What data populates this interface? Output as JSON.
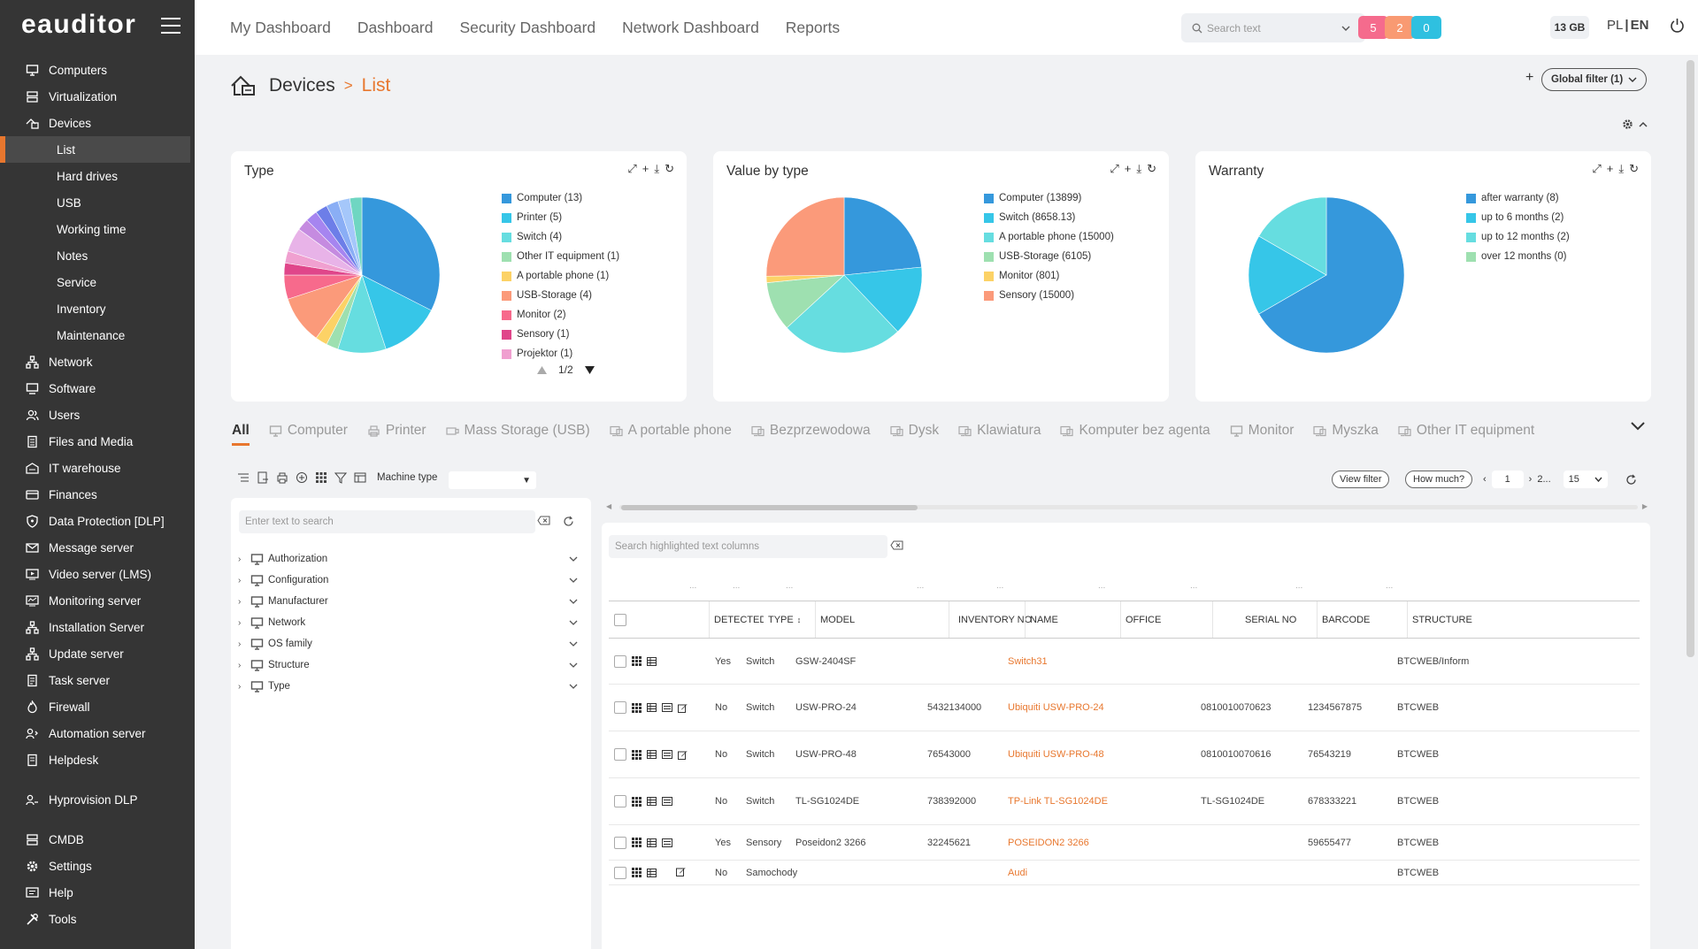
{
  "app": {
    "logo": "eauditor"
  },
  "sidebar": {
    "items": [
      {
        "label": "Computers",
        "icon": "monitor-icon",
        "level": "top"
      },
      {
        "label": "Virtualization",
        "icon": "server-icon",
        "level": "top"
      },
      {
        "label": "Devices",
        "icon": "devices-icon",
        "level": "top"
      },
      {
        "label": "List",
        "level": "sub",
        "active": true
      },
      {
        "label": "Hard drives",
        "level": "sub"
      },
      {
        "label": "USB",
        "level": "sub"
      },
      {
        "label": "Working time",
        "level": "sub"
      },
      {
        "label": "Notes",
        "level": "sub"
      },
      {
        "label": "Service",
        "level": "sub"
      },
      {
        "label": "Inventory",
        "level": "sub"
      },
      {
        "label": "Maintenance",
        "level": "sub"
      },
      {
        "label": "Network",
        "icon": "network-icon",
        "level": "top"
      },
      {
        "label": "Software",
        "icon": "software-icon",
        "level": "top"
      },
      {
        "label": "Users",
        "icon": "users-icon",
        "level": "top"
      },
      {
        "label": "Files and Media",
        "icon": "files-icon",
        "level": "top"
      },
      {
        "label": "IT warehouse",
        "icon": "warehouse-icon",
        "level": "top"
      },
      {
        "label": "Finances",
        "icon": "finances-icon",
        "level": "top"
      },
      {
        "label": "Data Protection [DLP]",
        "icon": "shield-icon",
        "level": "top"
      },
      {
        "label": "Message server",
        "icon": "mail-icon",
        "level": "top"
      },
      {
        "label": "Video server (LMS)",
        "icon": "video-icon",
        "level": "top"
      },
      {
        "label": "Monitoring server",
        "icon": "monitoring-icon",
        "level": "top"
      },
      {
        "label": "Installation Server",
        "icon": "installation-icon",
        "level": "top"
      },
      {
        "label": "Update server",
        "icon": "update-icon",
        "level": "top"
      },
      {
        "label": "Task server",
        "icon": "task-icon",
        "level": "top"
      },
      {
        "label": "Firewall",
        "icon": "firewall-icon",
        "level": "top"
      },
      {
        "label": "Automation server",
        "icon": "automation-icon",
        "level": "top"
      },
      {
        "label": "Helpdesk",
        "icon": "helpdesk-icon",
        "level": "top",
        "gap_after": true
      },
      {
        "label": "Hyprovision DLP",
        "icon": "hyprovision-icon",
        "level": "top",
        "gap_after": true
      },
      {
        "label": "CMDB",
        "icon": "cmdb-icon",
        "level": "top"
      },
      {
        "label": "Settings",
        "icon": "settings-icon",
        "level": "top"
      },
      {
        "label": "Help",
        "icon": "help-icon",
        "level": "top"
      },
      {
        "label": "Tools",
        "icon": "tools-icon",
        "level": "top"
      }
    ]
  },
  "topbar": {
    "nav": [
      "My Dashboard",
      "Dashboard",
      "Security Dashboard",
      "Network Dashboard",
      "Reports"
    ],
    "search_placeholder": "Search text",
    "badges": [
      {
        "value": "5",
        "color": "#f56b8d"
      },
      {
        "value": "2",
        "color": "#f99a72"
      },
      {
        "value": "0",
        "color": "#2fc0e0"
      }
    ],
    "memory": "13 GB",
    "lang_pl": "PL",
    "lang_sep": "|",
    "lang_en": "EN"
  },
  "breadcrumb": {
    "section": "Devices",
    "sep": ">",
    "current": "List"
  },
  "global_filter": {
    "label": "Global filter (1)",
    "plus": "+"
  },
  "charts": {
    "pager": "1/2"
  },
  "chart_data": [
    {
      "type": "pie",
      "title": "Type",
      "legend_page": "1/2",
      "slices": [
        {
          "label": "Computer (13)",
          "value": 13,
          "color": "#3598dc"
        },
        {
          "label": "Printer (5)",
          "value": 5,
          "color": "#36c6e8"
        },
        {
          "label": "Switch (4)",
          "value": 4,
          "color": "#66dde0"
        },
        {
          "label": "Other IT equipment (1)",
          "value": 1,
          "color": "#9ee0b0"
        },
        {
          "label": "A portable phone (1)",
          "value": 1,
          "color": "#fcd266"
        },
        {
          "label": "USB-Storage (4)",
          "value": 4,
          "color": "#fb9a7a"
        },
        {
          "label": "Monitor (2)",
          "value": 2,
          "color": "#f76a8c"
        },
        {
          "label": "Sensory (1)",
          "value": 1,
          "color": "#e0468a"
        },
        {
          "label": "Projektor (1)",
          "value": 1,
          "color": "#f0a0d0"
        }
      ],
      "hidden_slices": [
        {
          "value": 2,
          "color": "#e8b3e8"
        },
        {
          "value": 1,
          "color": "#c58be0"
        },
        {
          "value": 1,
          "color": "#a685f0"
        },
        {
          "value": 1,
          "color": "#6d7ee8"
        },
        {
          "value": 1,
          "color": "#8aaef5"
        },
        {
          "value": 1,
          "color": "#a5c7fa"
        },
        {
          "value": 1,
          "color": "#6fd6c2"
        }
      ]
    },
    {
      "type": "pie",
      "title": "Value by type",
      "slices": [
        {
          "label": "Computer (13899)",
          "value": 13899,
          "color": "#3598dc"
        },
        {
          "label": "Switch (8658.13)",
          "value": 8658.13,
          "color": "#36c6e8"
        },
        {
          "label": "A portable phone (15000)",
          "value": 15000,
          "color": "#66dde0"
        },
        {
          "label": "USB-Storage (6105)",
          "value": 6105,
          "color": "#9ee0b0"
        },
        {
          "label": "Monitor (801)",
          "value": 801,
          "color": "#fcd266"
        },
        {
          "label": "Sensory (15000)",
          "value": 15000,
          "color": "#fb9a7a"
        }
      ]
    },
    {
      "type": "pie",
      "title": "Warranty",
      "slices": [
        {
          "label": "after warranty (8)",
          "value": 8,
          "color": "#3598dc"
        },
        {
          "label": "up to 6 months (2)",
          "value": 2,
          "color": "#36c6e8"
        },
        {
          "label": "up to 12 months (2)",
          "value": 2,
          "color": "#66dde0"
        },
        {
          "label": "over 12 months (0)",
          "value": 0,
          "color": "#9ee0b0"
        }
      ]
    }
  ],
  "tabs": [
    {
      "label": "All",
      "active": true
    },
    {
      "label": "Computer",
      "icon": "monitor-icon"
    },
    {
      "label": "Printer",
      "icon": "printer-icon"
    },
    {
      "label": "Mass Storage (USB)",
      "icon": "usb-icon"
    },
    {
      "label": "A portable phone",
      "icon": "device-icon"
    },
    {
      "label": "Bezprzewodowa",
      "icon": "device-icon"
    },
    {
      "label": "Dysk",
      "icon": "device-icon"
    },
    {
      "label": "Klawiatura",
      "icon": "device-icon"
    },
    {
      "label": "Komputer bez agenta",
      "icon": "device-icon"
    },
    {
      "label": "Monitor",
      "icon": "monitor-icon"
    },
    {
      "label": "Myszka",
      "icon": "device-icon"
    },
    {
      "label": "Other IT equipment",
      "icon": "device-icon"
    }
  ],
  "toolbar": {
    "machine_type_label": "Machine type",
    "view_filter": "View filter",
    "how_much": "How much?",
    "page": "1",
    "page_next": "2...",
    "per_page": "15"
  },
  "filter_panel": {
    "search_placeholder": "Enter text to search",
    "tree": [
      "Authorization",
      "Configuration",
      "Manufacturer",
      "Network",
      "OS family",
      "Structure",
      "Type"
    ]
  },
  "table": {
    "search_placeholder": "Search highlighted text columns",
    "columns": {
      "detected": "DETECTED",
      "type": "TYPE",
      "model": "MODEL",
      "inventory_no": "INVENTORY NO",
      "name": "NAME",
      "office": "OFFICE",
      "serial_no": "SERIAL NO",
      "barcode": "BARCODE",
      "structure": "STRUCTURE"
    },
    "filter_dots": "...",
    "rows": [
      {
        "detected": "Yes",
        "type": "Switch",
        "model": "GSW-2404SF",
        "inventory_no": "",
        "name": "Switch31",
        "office": "",
        "serial_no": "",
        "barcode": "",
        "structure": "BTCWEB/Inform",
        "icons": 2
      },
      {
        "detected": "No",
        "type": "Switch",
        "model": "USW-PRO-24",
        "inventory_no": "5432134000",
        "name": "Ubiquiti USW-PRO-24",
        "office": "",
        "serial_no": "0810010070623",
        "barcode": "1234567875",
        "structure": "BTCWEB",
        "icons": 4
      },
      {
        "detected": "No",
        "type": "Switch",
        "model": "USW-PRO-48",
        "inventory_no": "76543000",
        "name": "Ubiquiti USW-PRO-48",
        "office": "",
        "serial_no": "0810010070616",
        "barcode": "76543219",
        "structure": "BTCWEB",
        "icons": 4
      },
      {
        "detected": "No",
        "type": "Switch",
        "model": "TL-SG1024DE",
        "inventory_no": "738392000",
        "name": "TP-Link TL-SG1024DE",
        "office": "",
        "serial_no": "TL-SG1024DE",
        "barcode": "678333221",
        "structure": "BTCWEB",
        "icons": 3
      },
      {
        "detected": "Yes",
        "type": "Sensory",
        "model": "Poseidon2 3266",
        "inventory_no": "32245621",
        "name": "POSEIDON2 3266",
        "office": "",
        "serial_no": "",
        "barcode": "59655477",
        "structure": "BTCWEB",
        "icons": 3
      },
      {
        "detected": "No",
        "type": "Samochody",
        "model": "",
        "inventory_no": "",
        "name": "Audi",
        "office": "",
        "serial_no": "",
        "barcode": "",
        "structure": "BTCWEB",
        "icons": 3
      }
    ]
  }
}
